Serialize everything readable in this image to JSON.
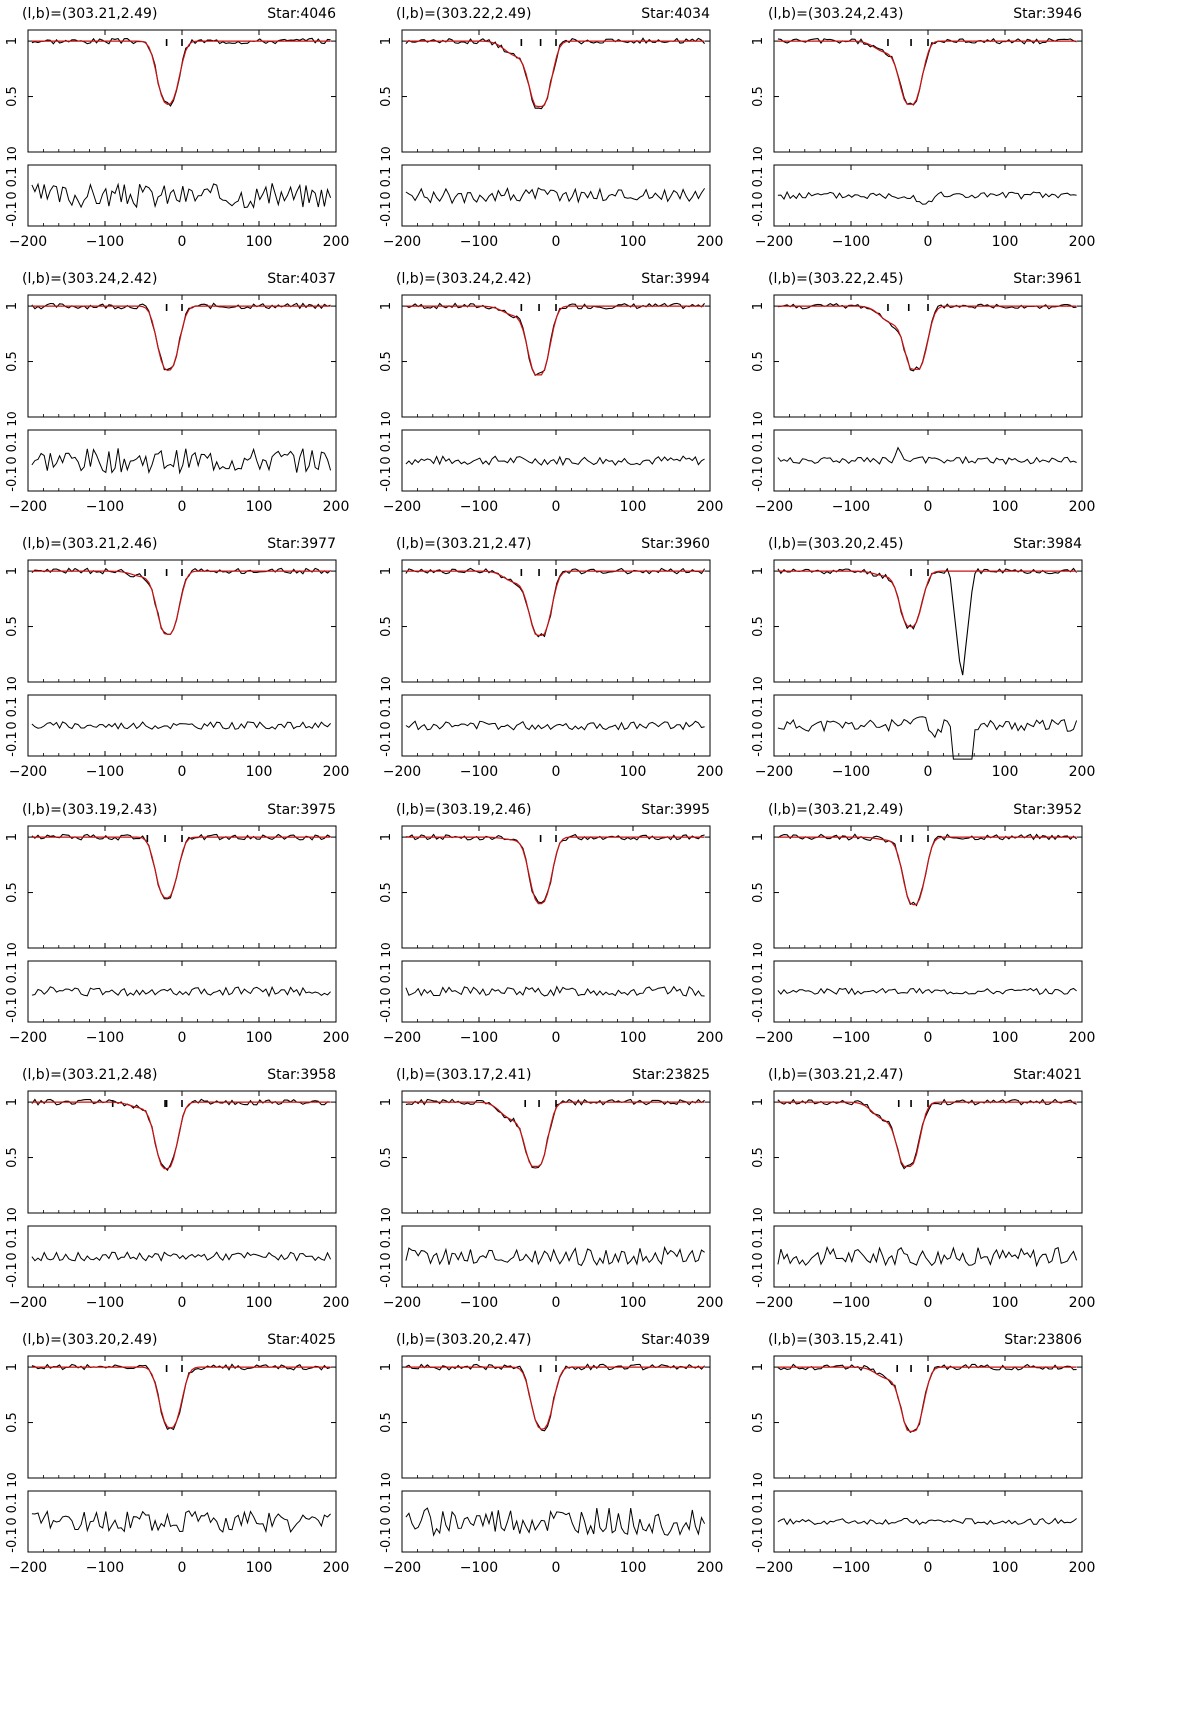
{
  "figure": {
    "x_ticks": [
      -200,
      -100,
      0,
      100,
      200
    ],
    "x_tick_labels": [
      "-200",
      "-100",
      "0",
      "100",
      "200"
    ],
    "top_y_ticks": [
      0.5,
      1
    ],
    "top_y_tick_labels": [
      "0.5",
      "1"
    ],
    "top_y_lower_label": "10",
    "resid_y_tick_labels": [
      "-0.1",
      "0",
      "0.1"
    ],
    "colors": {
      "data": "#000000",
      "fit": "#cc1111",
      "frame": "#000000"
    }
  },
  "chart_data": [
    {
      "type": "line",
      "coord_label": "(l,b)=(303.21,2.49)",
      "star_label": "Star:4046",
      "xlim": [
        -200,
        200
      ],
      "ylim_top": [
        0,
        1.1
      ],
      "ylim_resid": [
        -0.1,
        0.1
      ],
      "min_flux": 0.43,
      "center": -18,
      "blue_wing": 0.0,
      "ticks": [
        -20,
        0
      ],
      "resid_amp": 0.04,
      "feature": null,
      "series": [
        {
          "name": "data"
        },
        {
          "name": "fit"
        }
      ]
    },
    {
      "type": "line",
      "coord_label": "(l,b)=(303.22,2.49)",
      "star_label": "Star:4034",
      "xlim": [
        -200,
        200
      ],
      "ylim_top": [
        0,
        1.1
      ],
      "ylim_resid": [
        -0.1,
        0.1
      ],
      "min_flux": 0.41,
      "center": -20,
      "blue_wing": 0.25,
      "ticks": [
        -45,
        -20,
        0
      ],
      "resid_amp": 0.025,
      "feature": null,
      "series": [
        {
          "name": "data"
        },
        {
          "name": "fit"
        }
      ]
    },
    {
      "type": "line",
      "coord_label": "(l,b)=(303.24,2.43)",
      "star_label": "Star:3946",
      "xlim": [
        -200,
        200
      ],
      "ylim_top": [
        0,
        1.1
      ],
      "ylim_resid": [
        -0.1,
        0.1
      ],
      "min_flux": 0.43,
      "center": -22,
      "blue_wing": 0.2,
      "ticks": [
        -52,
        -22,
        0
      ],
      "resid_amp": 0.012,
      "feature": "dip",
      "series": [
        {
          "name": "data"
        },
        {
          "name": "fit"
        }
      ]
    },
    {
      "type": "line",
      "coord_label": "(l,b)=(303.24,2.42)",
      "star_label": "Star:4037",
      "xlim": [
        -200,
        200
      ],
      "ylim_top": [
        0,
        1.1
      ],
      "ylim_resid": [
        -0.1,
        0.1
      ],
      "min_flux": 0.42,
      "center": -18,
      "blue_wing": 0.0,
      "ticks": [
        -20,
        0
      ],
      "resid_amp": 0.04,
      "feature": null,
      "series": [
        {
          "name": "data"
        },
        {
          "name": "fit"
        }
      ]
    },
    {
      "type": "line",
      "coord_label": "(l,b)=(303.24,2.42)",
      "star_label": "Star:3994",
      "xlim": [
        -200,
        200
      ],
      "ylim_top": [
        0,
        1.1
      ],
      "ylim_resid": [
        -0.1,
        0.1
      ],
      "min_flux": 0.38,
      "center": -22,
      "blue_wing": 0.15,
      "ticks": [
        -45,
        -22,
        0
      ],
      "resid_amp": 0.015,
      "feature": null,
      "series": [
        {
          "name": "data"
        },
        {
          "name": "fit"
        }
      ]
    },
    {
      "type": "line",
      "coord_label": "(l,b)=(303.22,2.45)",
      "star_label": "Star:3961",
      "xlim": [
        -200,
        200
      ],
      "ylim_top": [
        0,
        1.1
      ],
      "ylim_resid": [
        -0.1,
        0.1
      ],
      "min_flux": 0.43,
      "center": -15,
      "blue_wing": 0.3,
      "ticks": [
        -52,
        -25,
        0
      ],
      "resid_amp": 0.012,
      "feature": "spike",
      "series": [
        {
          "name": "data"
        },
        {
          "name": "fit"
        }
      ]
    },
    {
      "type": "line",
      "coord_label": "(l,b)=(303.21,2.46)",
      "star_label": "Star:3977",
      "xlim": [
        -200,
        200
      ],
      "ylim_top": [
        0,
        1.1
      ],
      "ylim_resid": [
        -0.1,
        0.1
      ],
      "min_flux": 0.43,
      "center": -18,
      "blue_wing": 0.1,
      "ticks": [
        -48,
        -20,
        0
      ],
      "resid_amp": 0.012,
      "feature": null,
      "series": [
        {
          "name": "data"
        },
        {
          "name": "fit"
        }
      ]
    },
    {
      "type": "line",
      "coord_label": "(l,b)=(303.21,2.47)",
      "star_label": "Star:3960",
      "xlim": [
        -200,
        200
      ],
      "ylim_top": [
        0,
        1.1
      ],
      "ylim_resid": [
        -0.1,
        0.1
      ],
      "min_flux": 0.42,
      "center": -20,
      "blue_wing": 0.2,
      "ticks": [
        -45,
        -22,
        0
      ],
      "resid_amp": 0.014,
      "feature": null,
      "series": [
        {
          "name": "data"
        },
        {
          "name": "fit"
        }
      ]
    },
    {
      "type": "line",
      "coord_label": "(l,b)=(303.20,2.45)",
      "star_label": "Star:3984",
      "xlim": [
        -200,
        200
      ],
      "ylim_top": [
        0,
        1.1
      ],
      "ylim_resid": [
        -0.1,
        0.1
      ],
      "min_flux": 0.5,
      "center": -22,
      "blue_wing": 0.1,
      "ticks": [
        -22,
        0
      ],
      "resid_amp": 0.02,
      "feature": "gap",
      "series": [
        {
          "name": "data"
        },
        {
          "name": "fit"
        }
      ]
    },
    {
      "type": "line",
      "coord_label": "(l,b)=(303.19,2.43)",
      "star_label": "Star:3975",
      "xlim": [
        -200,
        200
      ],
      "ylim_top": [
        0,
        1.1
      ],
      "ylim_resid": [
        -0.1,
        0.1
      ],
      "min_flux": 0.45,
      "center": -20,
      "blue_wing": 0.0,
      "ticks": [
        -45,
        -22,
        0
      ],
      "resid_amp": 0.015,
      "feature": null,
      "series": [
        {
          "name": "data"
        },
        {
          "name": "fit"
        }
      ]
    },
    {
      "type": "line",
      "coord_label": "(l,b)=(303.19,2.46)",
      "star_label": "Star:3995",
      "xlim": [
        -200,
        200
      ],
      "ylim_top": [
        0,
        1.1
      ],
      "ylim_resid": [
        -0.1,
        0.1
      ],
      "min_flux": 0.4,
      "center": -20,
      "blue_wing": 0.05,
      "ticks": [
        -20,
        0
      ],
      "resid_amp": 0.016,
      "feature": null,
      "series": [
        {
          "name": "data"
        },
        {
          "name": "fit"
        }
      ]
    },
    {
      "type": "line",
      "coord_label": "(l,b)=(303.21,2.49)",
      "star_label": "Star:3952",
      "xlim": [
        -200,
        200
      ],
      "ylim_top": [
        0,
        1.1
      ],
      "ylim_resid": [
        -0.1,
        0.1
      ],
      "min_flux": 0.39,
      "center": -18,
      "blue_wing": 0.05,
      "ticks": [
        -35,
        -20,
        0
      ],
      "resid_amp": 0.01,
      "feature": null,
      "series": [
        {
          "name": "data"
        },
        {
          "name": "fit"
        }
      ]
    },
    {
      "type": "line",
      "coord_label": "(l,b)=(303.21,2.48)",
      "star_label": "Star:3958",
      "xlim": [
        -200,
        200
      ],
      "ylim_top": [
        0,
        1.1
      ],
      "ylim_resid": [
        -0.1,
        0.1
      ],
      "min_flux": 0.4,
      "center": -20,
      "blue_wing": 0.1,
      "ticks": [
        -90,
        -22,
        -20,
        0
      ],
      "resid_amp": 0.014,
      "feature": null,
      "series": [
        {
          "name": "data"
        },
        {
          "name": "fit"
        }
      ]
    },
    {
      "type": "line",
      "coord_label": "(l,b)=(303.17,2.41)",
      "star_label": "Star:23825",
      "xlim": [
        -200,
        200
      ],
      "ylim_top": [
        0,
        1.1
      ],
      "ylim_resid": [
        -0.1,
        0.1
      ],
      "min_flux": 0.42,
      "center": -25,
      "blue_wing": 0.3,
      "ticks": [
        -40,
        -22,
        0
      ],
      "resid_amp": 0.03,
      "feature": null,
      "series": [
        {
          "name": "data"
        },
        {
          "name": "fit"
        }
      ]
    },
    {
      "type": "line",
      "coord_label": "(l,b)=(303.21,2.47)",
      "star_label": "Star:4021",
      "xlim": [
        -200,
        200
      ],
      "ylim_top": [
        0,
        1.1
      ],
      "ylim_resid": [
        -0.1,
        0.1
      ],
      "min_flux": 0.42,
      "center": -25,
      "blue_wing": 0.3,
      "ticks": [
        -38,
        -22,
        0
      ],
      "resid_amp": 0.03,
      "feature": null,
      "series": [
        {
          "name": "data"
        },
        {
          "name": "fit"
        }
      ]
    },
    {
      "type": "line",
      "coord_label": "(l,b)=(303.20,2.49)",
      "star_label": "Star:4025",
      "xlim": [
        -200,
        200
      ],
      "ylim_top": [
        0,
        1.1
      ],
      "ylim_resid": [
        -0.1,
        0.1
      ],
      "min_flux": 0.45,
      "center": -15,
      "blue_wing": 0.0,
      "ticks": [
        -20,
        0
      ],
      "resid_amp": 0.035,
      "feature": null,
      "series": [
        {
          "name": "data"
        },
        {
          "name": "fit"
        }
      ]
    },
    {
      "type": "line",
      "coord_label": "(l,b)=(303.20,2.47)",
      "star_label": "Star:4039",
      "xlim": [
        -200,
        200
      ],
      "ylim_top": [
        0,
        1.1
      ],
      "ylim_resid": [
        -0.1,
        0.1
      ],
      "min_flux": 0.44,
      "center": -18,
      "blue_wing": 0.0,
      "ticks": [
        -20,
        0
      ],
      "resid_amp": 0.045,
      "feature": null,
      "series": [
        {
          "name": "data"
        },
        {
          "name": "fit"
        }
      ]
    },
    {
      "type": "line",
      "coord_label": "(l,b)=(303.15,2.41)",
      "star_label": "Star:23806",
      "xlim": [
        -200,
        200
      ],
      "ylim_top": [
        0,
        1.1
      ],
      "ylim_resid": [
        -0.1,
        0.1
      ],
      "min_flux": 0.42,
      "center": -20,
      "blue_wing": 0.2,
      "ticks": [
        -40,
        -22,
        0
      ],
      "resid_amp": 0.01,
      "feature": null,
      "series": [
        {
          "name": "data"
        },
        {
          "name": "fit"
        }
      ]
    }
  ]
}
